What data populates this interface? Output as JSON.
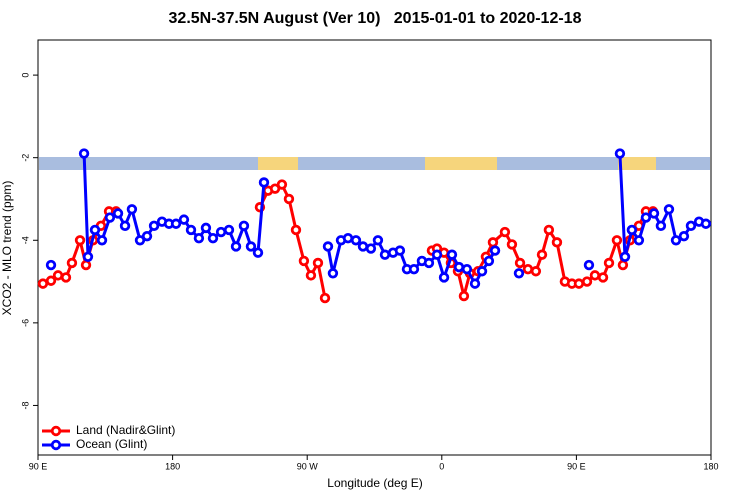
{
  "chart_data": {
    "type": "line",
    "title": "32.5N-37.5N August (Ver 10)   2015-01-01 to 2020-12-18",
    "x_label": "Longitude (deg E)",
    "y_label": "XCO2 - MLO trend (ppm)",
    "xlim": [
      90,
      540
    ],
    "xticks": [
      {
        "value": 90,
        "label": "90 E"
      },
      {
        "value": 180,
        "label": "180"
      },
      {
        "value": 270,
        "label": "90 W"
      },
      {
        "value": 360,
        "label": "0"
      },
      {
        "value": 450,
        "label": "90 E"
      },
      {
        "value": 540,
        "label": "180"
      }
    ],
    "ylim": [
      -9.2,
      0.85
    ],
    "yticks": [
      0,
      -2,
      -4,
      -6,
      -8
    ],
    "legend_position": "bottom-left",
    "series": [
      {
        "name": "Land (Nadir&Glint)",
        "color": "#ff0000",
        "x": [
          93.3,
          98.7,
          103.4,
          108.7,
          112.7,
          118.1,
          122.1,
          126.8,
          132.1,
          137.5,
          142.2,
          null,
          238.4,
          243.8,
          248.5,
          253.1,
          257.8,
          262.5,
          267.8,
          272.5,
          277.2,
          281.9,
          null,
          353.4,
          356.8,
          361.5,
          366.1,
          370.8,
          374.8,
          378.8,
          384.2,
          389.5,
          394.2,
          402.2,
          406.9,
          412.3,
          417.6,
          422.9,
          427.0,
          431.6,
          437.0,
          442.3,
          447.0,
          451.7,
          457.1,
          462.4,
          467.8,
          471.8,
          477.1,
          481.1,
          485.8,
          491.8,
          496.5,
          501.2
        ],
        "values": [
          -5.05,
          -4.98,
          -4.85,
          -4.9,
          -4.55,
          -4.0,
          -4.6,
          -4.0,
          -3.65,
          -3.3,
          -3.3,
          null,
          -3.2,
          -2.8,
          -2.75,
          -2.65,
          -3.0,
          -3.75,
          -4.5,
          -4.85,
          -4.55,
          -5.4,
          null,
          -4.25,
          -4.2,
          -4.3,
          -4.55,
          -4.75,
          -5.35,
          -4.8,
          -4.75,
          -4.4,
          -4.05,
          -3.8,
          -4.1,
          -4.55,
          -4.7,
          -4.75,
          -4.35,
          -3.75,
          -4.05,
          -5.0,
          -5.05,
          -5.05,
          -5.0,
          -4.85,
          -4.9,
          -4.55,
          -4.0,
          -4.6,
          -4.0,
          -3.65,
          -3.3,
          -3.3
        ]
      },
      {
        "name": "Ocean (Glint)",
        "color": "#0000ff",
        "x": [
          98.7,
          null,
          120.8,
          123.4,
          128.1,
          132.8,
          138.1,
          143.5,
          148.2,
          152.8,
          158.2,
          162.9,
          167.6,
          172.9,
          177.6,
          182.3,
          187.6,
          192.3,
          197.6,
          202.3,
          207.0,
          212.4,
          217.7,
          222.4,
          227.7,
          232.4,
          237.1,
          241.1,
          null,
          283.9,
          287.2,
          292.6,
          297.3,
          302.6,
          307.3,
          312.6,
          317.3,
          322.0,
          327.4,
          332.0,
          336.7,
          341.4,
          346.7,
          351.4,
          356.8,
          361.5,
          366.8,
          371.5,
          376.8,
          382.2,
          386.9,
          391.5,
          395.6,
          null,
          411.6,
          null,
          458.4,
          null,
          479.1,
          482.5,
          487.1,
          491.8,
          496.5,
          501.9,
          506.5,
          511.9,
          516.6,
          521.9,
          526.6,
          532.0,
          536.6
        ],
        "values": [
          -4.6,
          null,
          -1.9,
          -4.4,
          -3.75,
          -4.0,
          -3.45,
          -3.35,
          -3.65,
          -3.25,
          -4.0,
          -3.9,
          -3.65,
          -3.55,
          -3.6,
          -3.6,
          -3.5,
          -3.75,
          -3.95,
          -3.7,
          -3.95,
          -3.8,
          -3.75,
          -4.15,
          -3.65,
          -4.15,
          -4.3,
          -2.6,
          null,
          -4.15,
          -4.8,
          -4.0,
          -3.95,
          -4.0,
          -4.15,
          -4.2,
          -4.0,
          -4.35,
          -4.3,
          -4.25,
          -4.7,
          -4.7,
          -4.5,
          -4.55,
          -4.35,
          -4.9,
          -4.35,
          -4.65,
          -4.7,
          -5.05,
          -4.75,
          -4.5,
          -4.25,
          null,
          -4.8,
          null,
          -4.6,
          null,
          -1.9,
          -4.4,
          -3.75,
          -4.0,
          -3.45,
          -3.35,
          -3.65,
          -3.25,
          -4.0,
          -3.9,
          -3.65,
          -3.55,
          -3.6
        ]
      }
    ]
  }
}
